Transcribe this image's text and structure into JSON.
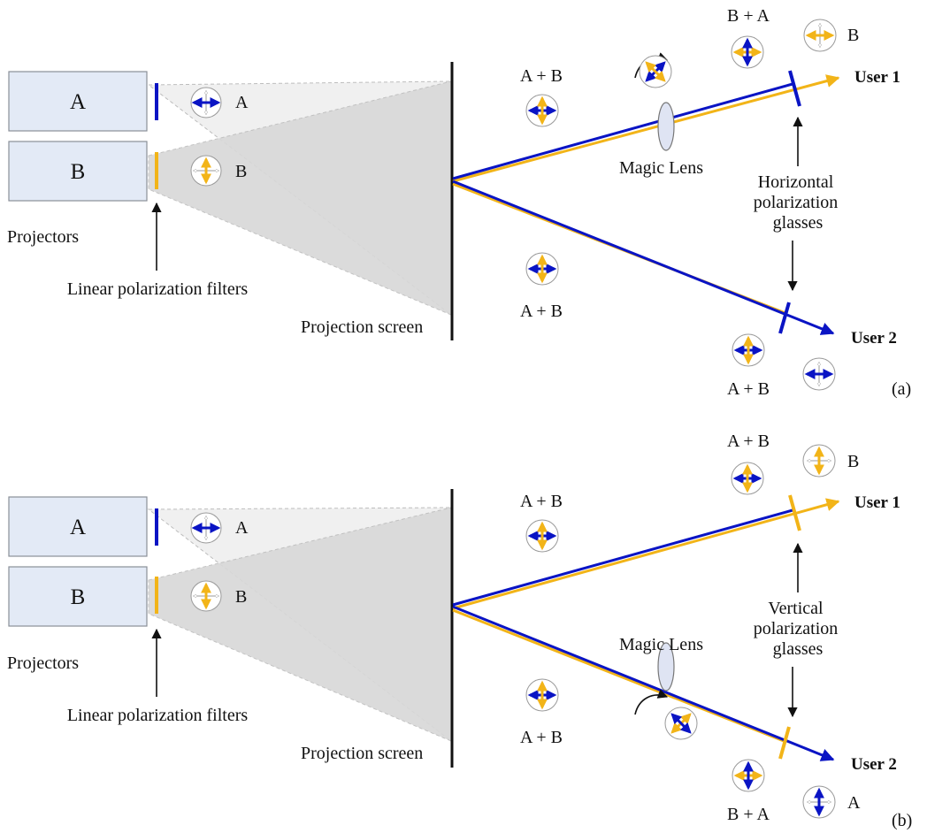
{
  "colors": {
    "blue": "#0a14c4",
    "yellow": "#f2b418",
    "projector_fill": "#e3eaf6",
    "projector_stroke": "#8a8f98",
    "beam_light": "#f0f0f0",
    "beam_dark": "#d4d4d4",
    "lens": "#dfe4f3"
  },
  "icons": [
    "arrow-icon",
    "polarization-state-icon",
    "rotation-arrow-icon",
    "magic-lens-icon"
  ],
  "panels": [
    {
      "id": "a",
      "tag": "(a)",
      "projector_a": "A",
      "projector_b": "B",
      "filter_a_label": "A",
      "filter_b_label": "B",
      "projectors_label": "Projectors",
      "filters_label": "Linear polarization filters",
      "screen_label": "Projection screen",
      "upper_beam_label": "A + B",
      "lower_beam_label": "A + B",
      "lens_label": "Magic Lens",
      "glasses_label": [
        "Horizontal",
        "polarization",
        "glasses"
      ],
      "user1": "User 1",
      "user2": "User 2",
      "user1_in_label": "B + A",
      "user1_out_label": "B",
      "user2_in_label": "A + B"
    },
    {
      "id": "b",
      "tag": "(b)",
      "projector_a": "A",
      "projector_b": "B",
      "filter_a_label": "A",
      "filter_b_label": "B",
      "projectors_label": "Projectors",
      "filters_label": "Linear polarization filters",
      "screen_label": "Projection screen",
      "upper_beam_label": "A + B",
      "lower_beam_label": "A + B",
      "lens_label": "Magic Lens",
      "glasses_label": [
        "Vertical",
        "polarization",
        "glasses"
      ],
      "user1": "User 1",
      "user2": "User 2",
      "user1_in_label": "A + B",
      "user1_out_label": "B",
      "user2_in_label": "B + A",
      "user2_out_label": "A"
    }
  ]
}
